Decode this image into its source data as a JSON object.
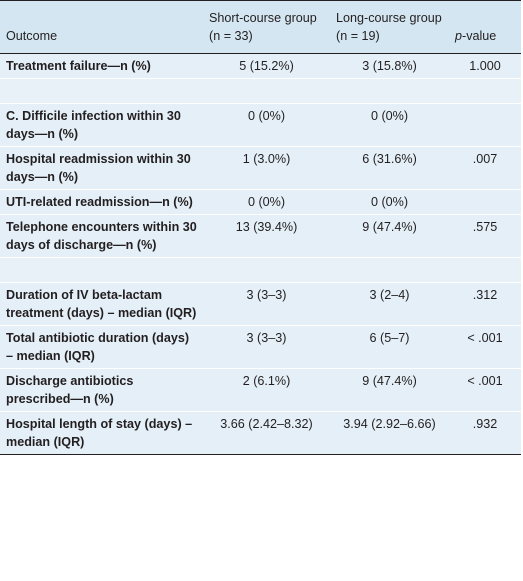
{
  "header": {
    "outcome": "Outcome",
    "short": "Short-course group (n = 33)",
    "long": "Long-course group (n = 19)",
    "p_italic": "p",
    "p_rest": "-value"
  },
  "rows": [
    {
      "type": "data",
      "label": "Treatment failure—n (%)",
      "short": "5 (15.2%)",
      "long": "3 (15.8%)",
      "p": "1.000"
    },
    {
      "type": "spacer"
    },
    {
      "type": "data",
      "label": "C. Difficile infection within 30 days—n (%)",
      "short": "0 (0%)",
      "long": "0 (0%)",
      "p": ""
    },
    {
      "type": "data",
      "label": "Hospital readmission within 30 days—n (%)",
      "short": "1 (3.0%)",
      "long": "6 (31.6%)",
      "p": ".007"
    },
    {
      "type": "data",
      "label": "UTI-related readmission—n (%)",
      "short": "0 (0%)",
      "long": "0 (0%)",
      "p": ""
    },
    {
      "type": "data",
      "label": "Telephone encounters within 30 days of discharge—n (%)",
      "short": "13 (39.4%)",
      "long": "9 (47.4%)",
      "p": ".575"
    },
    {
      "type": "spacer"
    },
    {
      "type": "data",
      "label": "Duration of IV beta-lactam treatment (days) – median (IQR)",
      "short": "3 (3–3)",
      "long": "3 (2–4)",
      "p": ".312"
    },
    {
      "type": "data",
      "label": "Total antibiotic duration (days) – median (IQR)",
      "short": "3 (3–3)",
      "long": "6 (5–7)",
      "p": "< .001"
    },
    {
      "type": "data",
      "label": "Discharge antibiotics prescribed—n (%)",
      "short": "2 (6.1%)",
      "long": "9 (47.4%)",
      "p": "< .001"
    },
    {
      "type": "data",
      "label": "Hospital length of stay (days) – median (IQR)",
      "short": "3.66 (2.42–8.32)",
      "long": "3.94 (2.92–6.66)",
      "p": ".932"
    }
  ]
}
